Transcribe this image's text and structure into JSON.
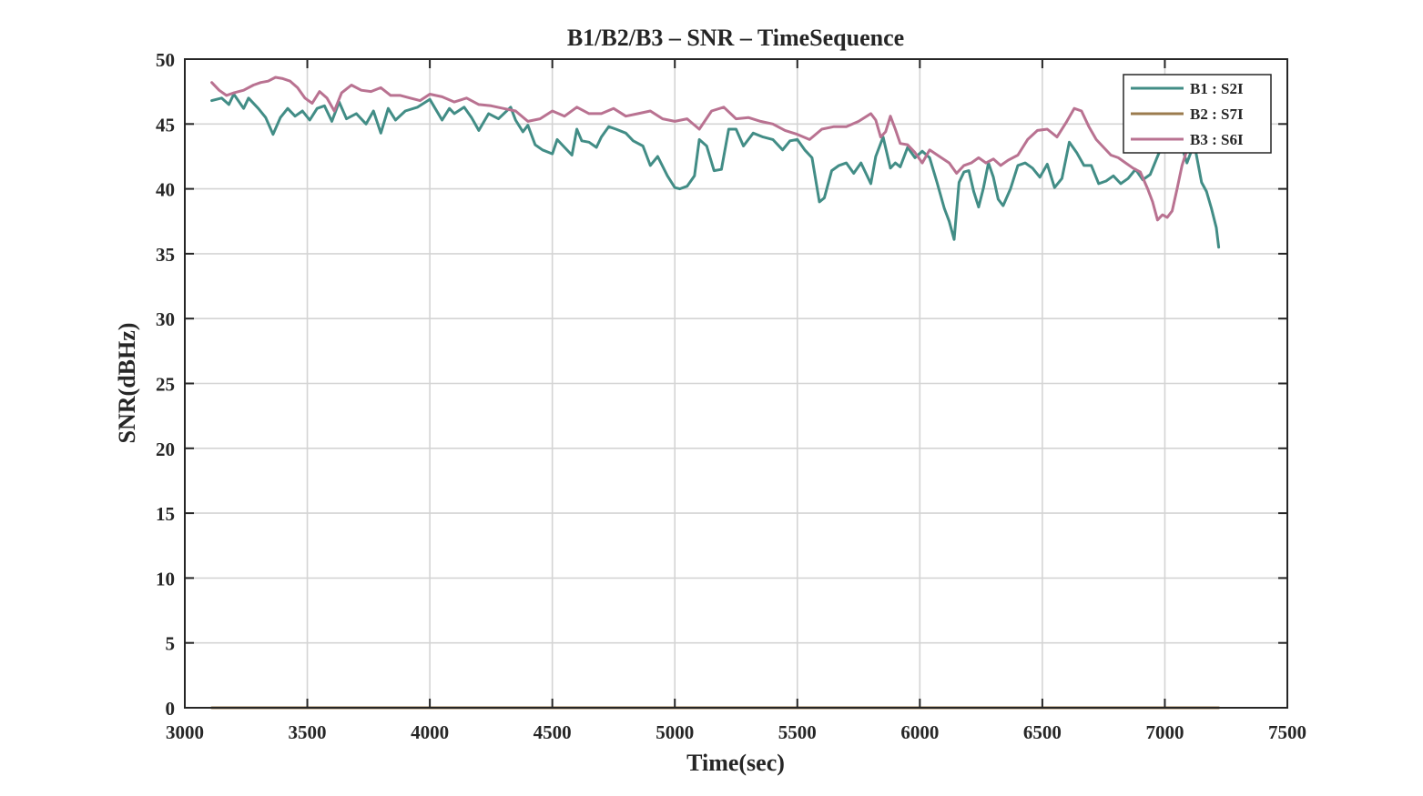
{
  "chart_data": {
    "type": "line",
    "title": "B1/B2/B3 – SNR – TimeSequence",
    "xlabel": "Time(sec)",
    "ylabel": "SNR(dBHz)",
    "xlim": [
      3000,
      7500
    ],
    "ylim": [
      0,
      50
    ],
    "xticks": [
      3000,
      3500,
      4000,
      4500,
      5000,
      5500,
      6000,
      6500,
      7000,
      7500
    ],
    "yticks": [
      0,
      5,
      10,
      15,
      20,
      25,
      30,
      35,
      40,
      45,
      50
    ],
    "x_tick_labels": [
      "3000",
      "3500",
      "4000",
      "4500",
      "5000",
      "5500",
      "6000",
      "6500",
      "7000",
      "7500"
    ],
    "y_tick_labels": [
      "0",
      "5",
      "10",
      "15",
      "20",
      "25",
      "30",
      "35",
      "40",
      "45",
      "50"
    ],
    "grid": true,
    "legend_position": "top-right",
    "series": [
      {
        "name": "B1 : S2I",
        "color": "#428d86",
        "x": [
          3110,
          3150,
          3180,
          3200,
          3240,
          3260,
          3300,
          3330,
          3360,
          3390,
          3420,
          3450,
          3480,
          3510,
          3540,
          3570,
          3600,
          3630,
          3660,
          3700,
          3740,
          3770,
          3800,
          3830,
          3860,
          3900,
          3950,
          4000,
          4050,
          4080,
          4100,
          4140,
          4170,
          4200,
          4240,
          4280,
          4330,
          4350,
          4380,
          4400,
          4430,
          4460,
          4500,
          4520,
          4550,
          4580,
          4600,
          4620,
          4650,
          4680,
          4700,
          4730,
          4760,
          4800,
          4830,
          4870,
          4900,
          4930,
          4970,
          5000,
          5020,
          5050,
          5080,
          5100,
          5130,
          5160,
          5190,
          5220,
          5250,
          5280,
          5320,
          5360,
          5400,
          5440,
          5470,
          5500,
          5530,
          5560,
          5590,
          5610,
          5640,
          5670,
          5700,
          5730,
          5760,
          5800,
          5820,
          5850,
          5880,
          5900,
          5920,
          5950,
          5980,
          6010,
          6040,
          6070,
          6100,
          6120,
          6140,
          6160,
          6180,
          6200,
          6220,
          6240,
          6260,
          6280,
          6300,
          6320,
          6340,
          6370,
          6400,
          6430,
          6460,
          6490,
          6520,
          6550,
          6580,
          6610,
          6640,
          6670,
          6700,
          6730,
          6760,
          6790,
          6820,
          6850,
          6880,
          6910,
          6940,
          6970,
          7000,
          7030,
          7060,
          7090,
          7120,
          7150,
          7170,
          7190,
          7210,
          7220
        ],
        "values": [
          46.8,
          47.0,
          46.5,
          47.3,
          46.2,
          47.0,
          46.2,
          45.5,
          44.2,
          45.5,
          46.2,
          45.6,
          46.0,
          45.3,
          46.2,
          46.4,
          45.2,
          46.7,
          45.4,
          45.8,
          45.0,
          46.0,
          44.3,
          46.2,
          45.3,
          46.0,
          46.3,
          46.9,
          45.3,
          46.2,
          45.8,
          46.3,
          45.5,
          44.5,
          45.8,
          45.4,
          46.3,
          45.3,
          44.4,
          44.9,
          43.4,
          43.0,
          42.7,
          43.8,
          43.2,
          42.6,
          44.6,
          43.7,
          43.6,
          43.2,
          44.0,
          44.8,
          44.6,
          44.3,
          43.7,
          43.3,
          41.8,
          42.5,
          41.0,
          40.1,
          40.0,
          40.2,
          41.0,
          43.8,
          43.3,
          41.4,
          41.5,
          44.6,
          44.6,
          43.3,
          44.3,
          44.0,
          43.8,
          43.0,
          43.7,
          43.8,
          43.0,
          42.4,
          39.0,
          39.3,
          41.4,
          41.8,
          42.0,
          41.2,
          42.0,
          40.4,
          42.5,
          44.0,
          41.6,
          42.0,
          41.7,
          43.2,
          42.4,
          42.9,
          42.4,
          40.5,
          38.5,
          37.5,
          36.1,
          40.5,
          41.3,
          41.4,
          39.8,
          38.6,
          40.1,
          42.0,
          40.9,
          39.2,
          38.7,
          40.0,
          41.8,
          42.0,
          41.6,
          40.9,
          41.9,
          40.1,
          40.8,
          43.6,
          42.8,
          41.8,
          41.8,
          40.4,
          40.6,
          41.0,
          40.4,
          40.8,
          41.5,
          40.7,
          41.1,
          42.5,
          43.8,
          43.5,
          43.8,
          42.0,
          43.5,
          40.5,
          39.8,
          38.5,
          37.0,
          35.5
        ]
      },
      {
        "name": "B2 : S7I",
        "color": "#9b7b4e",
        "x": [
          3110,
          7220
        ],
        "values": [
          0,
          0
        ]
      },
      {
        "name": "B3 : S6I",
        "color": "#b97291",
        "x": [
          3110,
          3140,
          3170,
          3200,
          3240,
          3280,
          3310,
          3340,
          3370,
          3400,
          3430,
          3460,
          3490,
          3520,
          3550,
          3580,
          3610,
          3640,
          3680,
          3720,
          3760,
          3800,
          3840,
          3880,
          3920,
          3960,
          4000,
          4050,
          4100,
          4150,
          4200,
          4250,
          4300,
          4350,
          4400,
          4450,
          4500,
          4550,
          4600,
          4650,
          4700,
          4750,
          4800,
          4850,
          4900,
          4950,
          5000,
          5050,
          5100,
          5150,
          5200,
          5250,
          5300,
          5350,
          5400,
          5450,
          5500,
          5550,
          5600,
          5650,
          5700,
          5750,
          5800,
          5820,
          5840,
          5860,
          5880,
          5900,
          5920,
          5950,
          5980,
          6010,
          6040,
          6080,
          6120,
          6150,
          6180,
          6210,
          6240,
          6270,
          6300,
          6330,
          6360,
          6400,
          6440,
          6480,
          6520,
          6560,
          6600,
          6630,
          6660,
          6690,
          6720,
          6750,
          6780,
          6810,
          6840,
          6870,
          6900,
          6930,
          6950,
          6970,
          6990,
          7010,
          7030,
          7050,
          7070,
          7090,
          7110,
          7130,
          7160
        ],
        "values": [
          48.2,
          47.6,
          47.2,
          47.4,
          47.6,
          48.0,
          48.2,
          48.3,
          48.6,
          48.5,
          48.3,
          47.8,
          47.0,
          46.6,
          47.5,
          47.0,
          46.0,
          47.4,
          48.0,
          47.6,
          47.5,
          47.8,
          47.2,
          47.2,
          47.0,
          46.8,
          47.3,
          47.1,
          46.7,
          47.0,
          46.5,
          46.4,
          46.2,
          46.0,
          45.2,
          45.4,
          46.0,
          45.6,
          46.3,
          45.8,
          45.8,
          46.2,
          45.6,
          45.8,
          46.0,
          45.4,
          45.2,
          45.4,
          44.6,
          46.0,
          46.3,
          45.4,
          45.5,
          45.2,
          45.0,
          44.5,
          44.2,
          43.8,
          44.6,
          44.8,
          44.8,
          45.2,
          45.8,
          45.3,
          44.0,
          44.4,
          45.6,
          44.6,
          43.5,
          43.4,
          42.8,
          42.0,
          43.0,
          42.5,
          42.0,
          41.2,
          41.8,
          42.0,
          42.4,
          42.0,
          42.3,
          41.8,
          42.2,
          42.6,
          43.8,
          44.5,
          44.6,
          44.0,
          45.2,
          46.2,
          46.0,
          44.8,
          43.8,
          43.2,
          42.6,
          42.4,
          42.0,
          41.6,
          41.3,
          40.0,
          39.0,
          37.6,
          38.0,
          37.8,
          38.3,
          40.0,
          41.8,
          43.0,
          43.5,
          44.6,
          45.0
        ]
      }
    ]
  }
}
